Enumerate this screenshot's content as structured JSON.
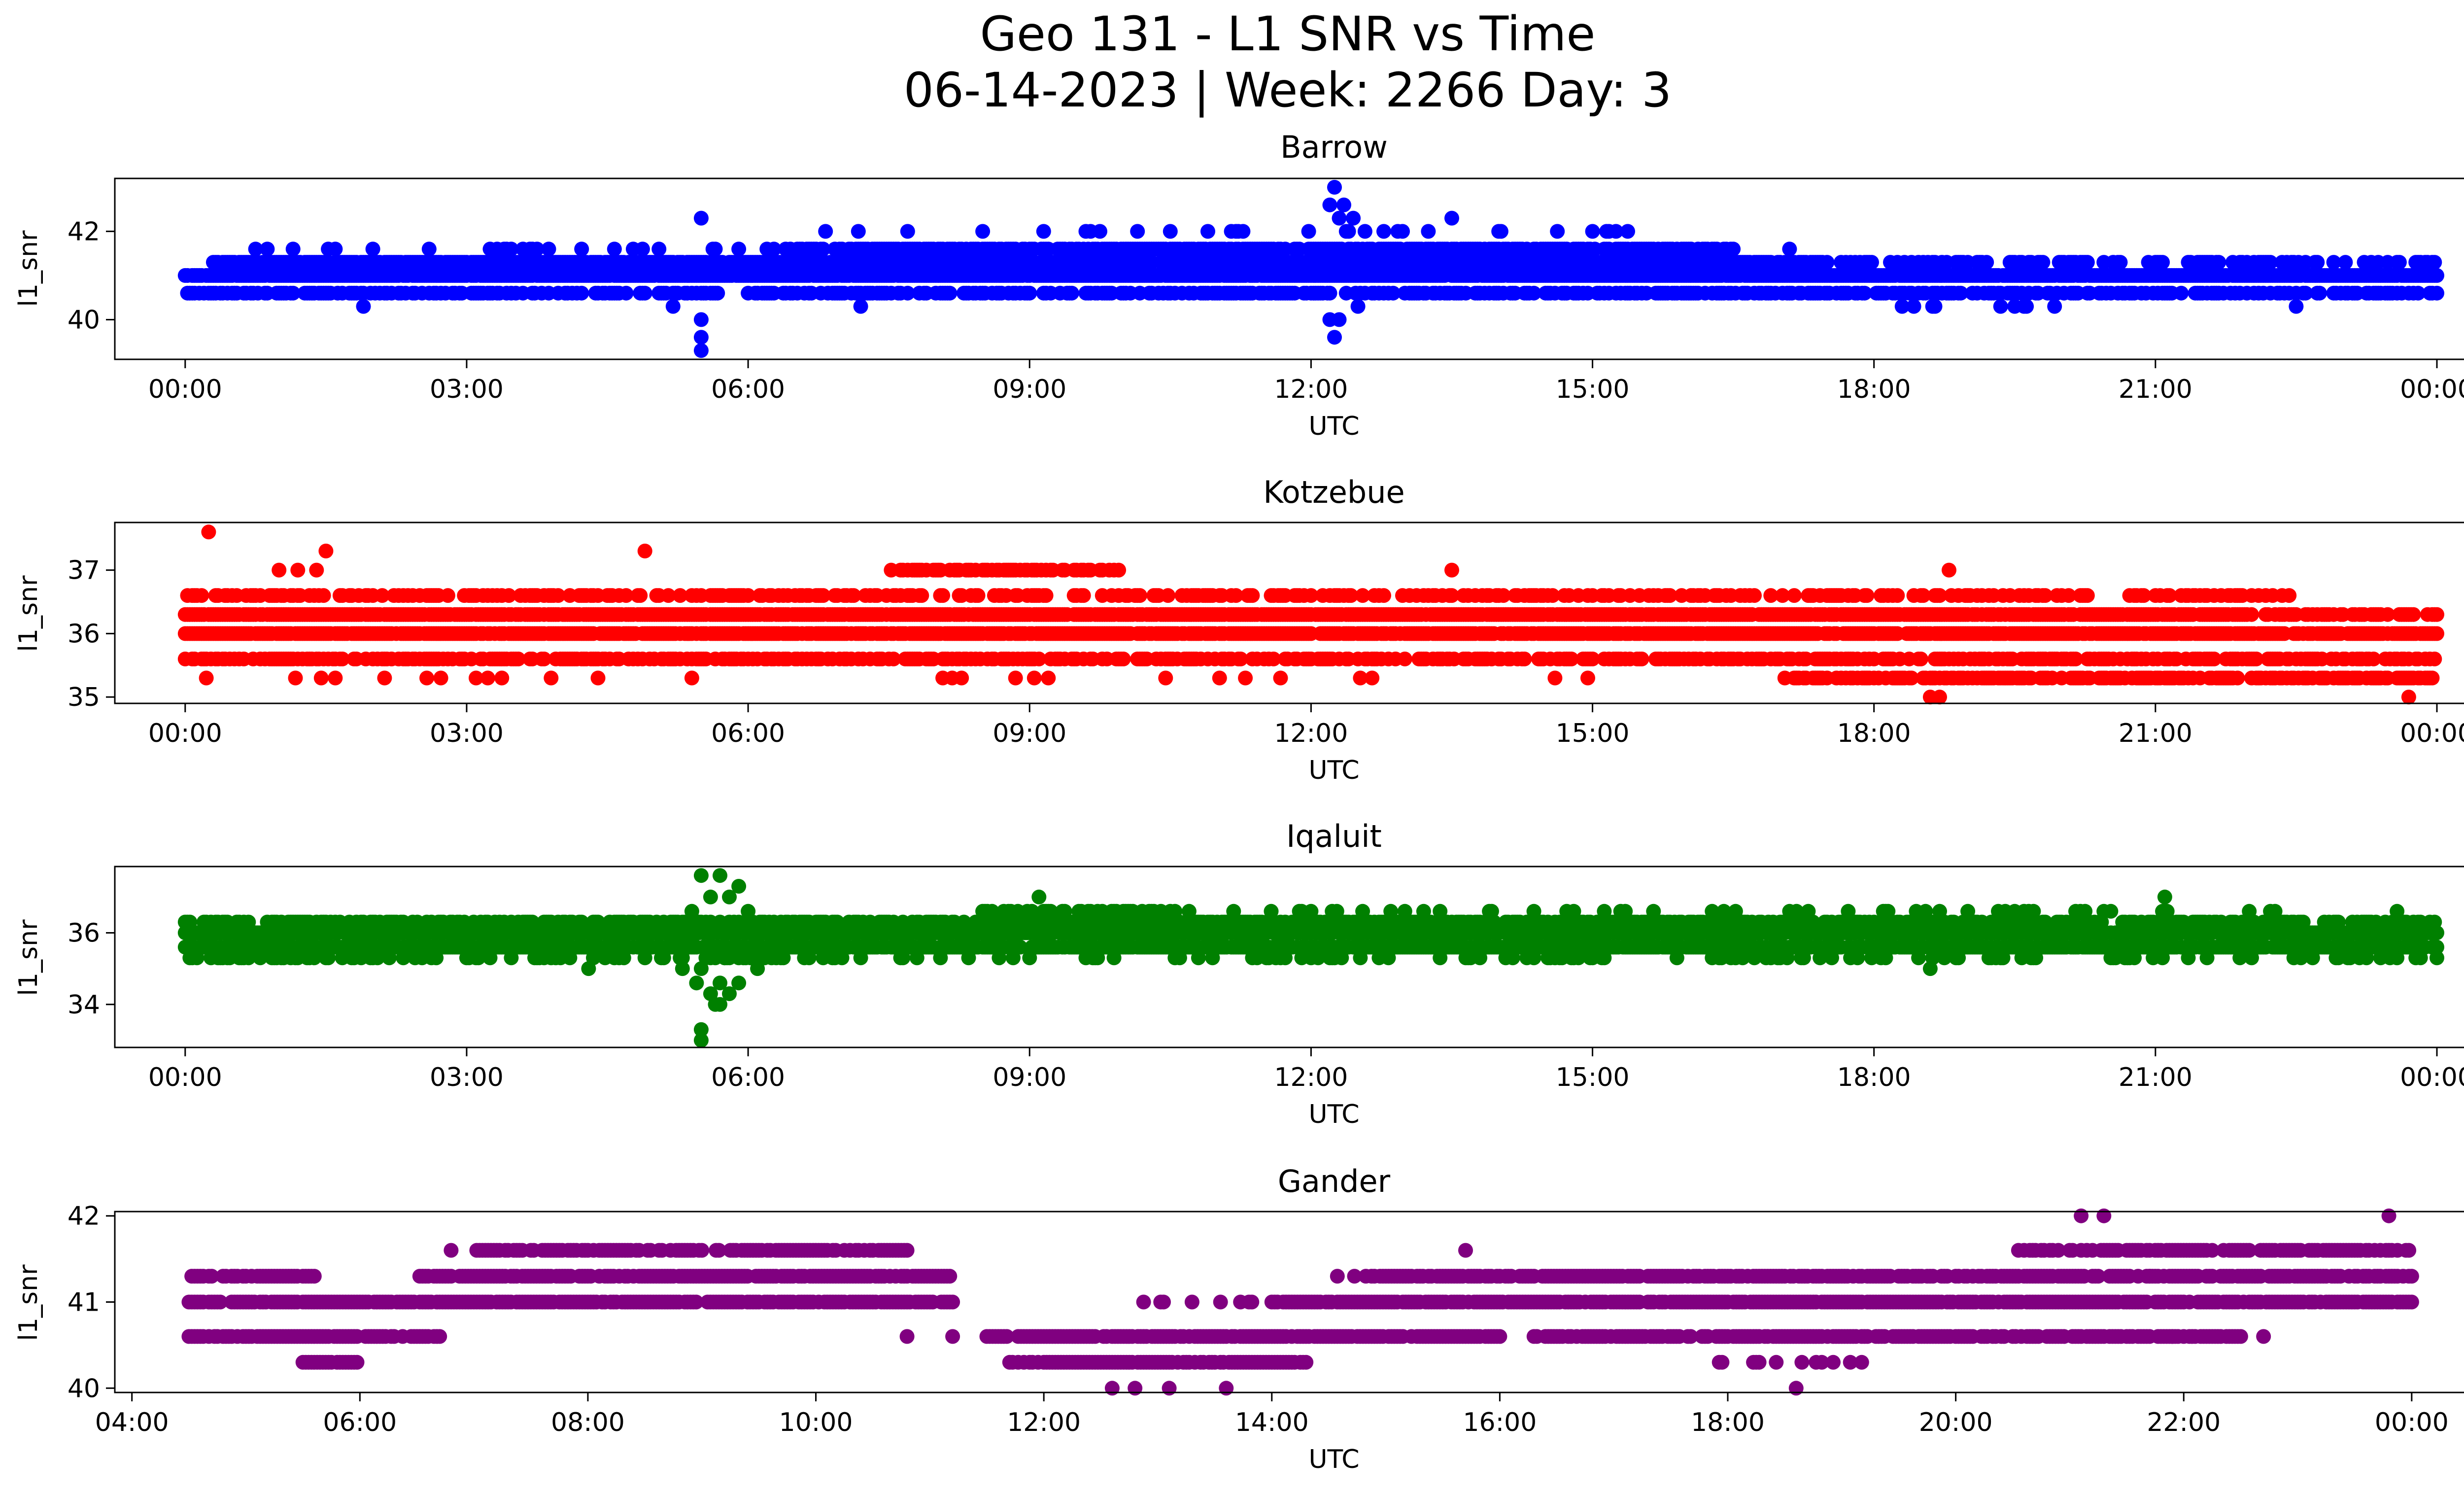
{
  "figure": {
    "title_line1": "Geo 131 - L1 SNR vs Time",
    "title_line2": "06-14-2023 | Week: 2266 Day: 3"
  },
  "chart_data": [
    {
      "type": "scatter",
      "title": "Barrow",
      "xlabel": "UTC",
      "ylabel": "l1_snr",
      "color": "#0000ff",
      "x_unit": "hours UTC (24 = next 00:00)",
      "xlim": [
        -0.75,
        25.25
      ],
      "ylim": [
        39.1,
        43.2
      ],
      "xticks": [
        0,
        3,
        6,
        9,
        12,
        15,
        18,
        21,
        24
      ],
      "xtick_labels": [
        "00:00",
        "03:00",
        "06:00",
        "09:00",
        "12:00",
        "15:00",
        "18:00",
        "21:00",
        "00:00"
      ],
      "yticks": [
        40,
        42
      ],
      "ytick_labels": [
        "40",
        "42"
      ],
      "bands": [
        {
          "y": 41.0,
          "start": 0.0,
          "end": 24.0,
          "density": 0.95
        },
        {
          "y": 40.6,
          "start": 0.0,
          "end": 24.0,
          "density": 0.55
        },
        {
          "y": 41.3,
          "start": 0.3,
          "end": 17.5,
          "density": 0.85
        },
        {
          "y": 41.3,
          "start": 17.5,
          "end": 24.0,
          "density": 0.4
        },
        {
          "y": 41.6,
          "start": 6.5,
          "end": 16.5,
          "density": 0.75
        },
        {
          "y": 41.6,
          "start": 0.5,
          "end": 6.5,
          "density": 0.12
        },
        {
          "y": 42.0,
          "start": 6.8,
          "end": 15.5,
          "density": 0.08
        },
        {
          "y": 40.3,
          "start": 18.0,
          "end": 20.0,
          "density": 0.1
        }
      ],
      "extra_points": [
        [
          5.5,
          42.3
        ],
        [
          5.5,
          40.0
        ],
        [
          5.5,
          39.6
        ],
        [
          5.5,
          39.3
        ],
        [
          5.2,
          40.3
        ],
        [
          1.9,
          40.3
        ],
        [
          12.25,
          43.0
        ],
        [
          12.2,
          42.6
        ],
        [
          12.3,
          42.3
        ],
        [
          12.35,
          42.6
        ],
        [
          12.4,
          42.0
        ],
        [
          12.2,
          40.0
        ],
        [
          12.3,
          40.0
        ],
        [
          12.25,
          39.6
        ],
        [
          12.5,
          40.3
        ],
        [
          12.45,
          42.3
        ],
        [
          13.5,
          42.3
        ],
        [
          7.2,
          40.3
        ],
        [
          17.1,
          41.6
        ],
        [
          19.6,
          40.3
        ],
        [
          22.5,
          40.3
        ],
        [
          18.3,
          40.3
        ]
      ]
    },
    {
      "type": "scatter",
      "title": "Kotzebue",
      "xlabel": "UTC",
      "ylabel": "l1_snr",
      "color": "#ff0000",
      "x_unit": "hours UTC (24 = next 00:00)",
      "xlim": [
        -0.75,
        25.25
      ],
      "ylim": [
        34.9,
        37.75
      ],
      "xticks": [
        0,
        3,
        6,
        9,
        12,
        15,
        18,
        21,
        24
      ],
      "xtick_labels": [
        "00:00",
        "03:00",
        "06:00",
        "09:00",
        "12:00",
        "15:00",
        "18:00",
        "21:00",
        "00:00"
      ],
      "yticks": [
        35,
        36,
        37
      ],
      "ytick_labels": [
        "35",
        "36",
        "37"
      ],
      "bands": [
        {
          "y": 36.0,
          "start": 0.0,
          "end": 24.0,
          "density": 0.9
        },
        {
          "y": 36.3,
          "start": 0.0,
          "end": 22.0,
          "density": 0.9
        },
        {
          "y": 36.3,
          "start": 22.0,
          "end": 24.0,
          "density": 0.5
        },
        {
          "y": 35.6,
          "start": 0.0,
          "end": 24.0,
          "density": 0.55
        },
        {
          "y": 36.6,
          "start": 0.0,
          "end": 22.5,
          "density": 0.4
        },
        {
          "y": 35.3,
          "start": 17.0,
          "end": 24.0,
          "density": 0.6
        },
        {
          "y": 35.3,
          "start": 0.0,
          "end": 17.0,
          "density": 0.05
        },
        {
          "y": 37.0,
          "start": 7.5,
          "end": 10.0,
          "density": 0.55
        }
      ],
      "extra_points": [
        [
          0.25,
          37.6
        ],
        [
          1.0,
          37.0
        ],
        [
          1.2,
          37.0
        ],
        [
          1.5,
          37.3
        ],
        [
          1.4,
          37.0
        ],
        [
          4.9,
          37.3
        ],
        [
          13.5,
          37.0
        ],
        [
          18.8,
          37.0
        ],
        [
          18.6,
          35.0
        ],
        [
          18.7,
          35.0
        ],
        [
          23.7,
          35.0
        ],
        [
          0.2,
          35.6
        ]
      ]
    },
    {
      "type": "scatter",
      "title": "Iqaluit",
      "xlabel": "UTC",
      "ylabel": "l1_snr",
      "color": "#008000",
      "x_unit": "hours UTC (24 = next 00:00)",
      "xlim": [
        -0.75,
        25.25
      ],
      "ylim": [
        32.8,
        37.85
      ],
      "xticks": [
        0,
        3,
        6,
        9,
        12,
        15,
        18,
        21,
        24
      ],
      "xtick_labels": [
        "00:00",
        "03:00",
        "06:00",
        "09:00",
        "12:00",
        "15:00",
        "18:00",
        "21:00",
        "00:00"
      ],
      "yticks": [
        34,
        36
      ],
      "ytick_labels": [
        "34",
        "36"
      ],
      "bands": [
        {
          "y": 36.0,
          "start": 0.0,
          "end": 24.0,
          "density": 0.9
        },
        {
          "y": 35.6,
          "start": 0.0,
          "end": 24.0,
          "density": 0.9
        },
        {
          "y": 36.3,
          "start": 0.0,
          "end": 24.0,
          "density": 0.55
        },
        {
          "y": 35.3,
          "start": 0.0,
          "end": 24.0,
          "density": 0.2
        },
        {
          "y": 36.6,
          "start": 8.5,
          "end": 10.5,
          "density": 0.5
        },
        {
          "y": 36.6,
          "start": 10.5,
          "end": 24.0,
          "density": 0.08
        }
      ],
      "extra_points": [
        [
          5.5,
          37.6
        ],
        [
          5.7,
          37.6
        ],
        [
          5.9,
          37.3
        ],
        [
          5.6,
          37.0
        ],
        [
          5.8,
          37.0
        ],
        [
          5.4,
          36.6
        ],
        [
          6.0,
          36.6
        ],
        [
          5.5,
          35.0
        ],
        [
          5.7,
          34.6
        ],
        [
          5.6,
          34.3
        ],
        [
          5.8,
          34.3
        ],
        [
          5.7,
          34.0
        ],
        [
          5.9,
          34.6
        ],
        [
          5.45,
          34.6
        ],
        [
          5.5,
          33.3
        ],
        [
          5.5,
          33.0
        ],
        [
          5.3,
          35.0
        ],
        [
          6.1,
          35.0
        ],
        [
          5.65,
          34.0
        ],
        [
          5.75,
          35.3
        ],
        [
          9.1,
          37.0
        ],
        [
          21.1,
          37.0
        ],
        [
          4.3,
          35.0
        ],
        [
          18.6,
          35.0
        ]
      ]
    },
    {
      "type": "scatter",
      "title": "Gander",
      "xlabel": "UTC",
      "ylabel": "l1_snr",
      "color": "#800080",
      "x_unit": "hours UTC (24 = next 00:00)",
      "xlim": [
        3.85,
        25.25
      ],
      "ylim": [
        39.95,
        42.05
      ],
      "xticks": [
        4,
        6,
        8,
        10,
        12,
        14,
        16,
        18,
        20,
        22,
        24
      ],
      "xtick_labels": [
        "04:00",
        "06:00",
        "08:00",
        "10:00",
        "12:00",
        "14:00",
        "16:00",
        "18:00",
        "20:00",
        "22:00",
        "00:00"
      ],
      "yticks": [
        40,
        41,
        42
      ],
      "ytick_labels": [
        "40",
        "41",
        "42"
      ],
      "bands": [
        {
          "y": 41.0,
          "start": 4.5,
          "end": 11.2,
          "density": 0.9
        },
        {
          "y": 41.0,
          "start": 14.0,
          "end": 24.0,
          "density": 0.9
        },
        {
          "y": 41.0,
          "start": 12.8,
          "end": 14.0,
          "density": 0.2
        },
        {
          "y": 41.3,
          "start": 4.5,
          "end": 5.6,
          "density": 0.7
        },
        {
          "y": 41.3,
          "start": 6.5,
          "end": 11.2,
          "density": 0.85
        },
        {
          "y": 41.3,
          "start": 14.9,
          "end": 24.0,
          "density": 0.8
        },
        {
          "y": 41.3,
          "start": 14.3,
          "end": 14.9,
          "density": 0.2
        },
        {
          "y": 40.6,
          "start": 4.5,
          "end": 6.7,
          "density": 0.8
        },
        {
          "y": 40.6,
          "start": 11.5,
          "end": 16.0,
          "density": 0.9
        },
        {
          "y": 40.6,
          "start": 16.3,
          "end": 22.5,
          "density": 0.8
        },
        {
          "y": 41.6,
          "start": 7.0,
          "end": 10.8,
          "density": 0.75
        },
        {
          "y": 41.6,
          "start": 20.5,
          "end": 24.0,
          "density": 0.7
        },
        {
          "y": 40.3,
          "start": 11.7,
          "end": 14.3,
          "density": 0.85
        },
        {
          "y": 40.3,
          "start": 5.5,
          "end": 6.0,
          "density": 0.8
        },
        {
          "y": 40.3,
          "start": 17.9,
          "end": 19.2,
          "density": 0.3
        }
      ],
      "extra_points": [
        [
          12.6,
          40.0
        ],
        [
          12.8,
          40.0
        ],
        [
          13.1,
          40.0
        ],
        [
          13.6,
          40.0
        ],
        [
          18.6,
          40.0
        ],
        [
          21.1,
          42.0
        ],
        [
          21.3,
          42.0
        ],
        [
          23.8,
          42.0
        ],
        [
          6.8,
          41.6
        ],
        [
          15.7,
          41.6
        ],
        [
          10.8,
          40.6
        ],
        [
          11.2,
          40.6
        ],
        [
          21.9,
          40.6
        ],
        [
          22.7,
          40.6
        ],
        [
          21.7,
          41.3
        ]
      ]
    }
  ]
}
